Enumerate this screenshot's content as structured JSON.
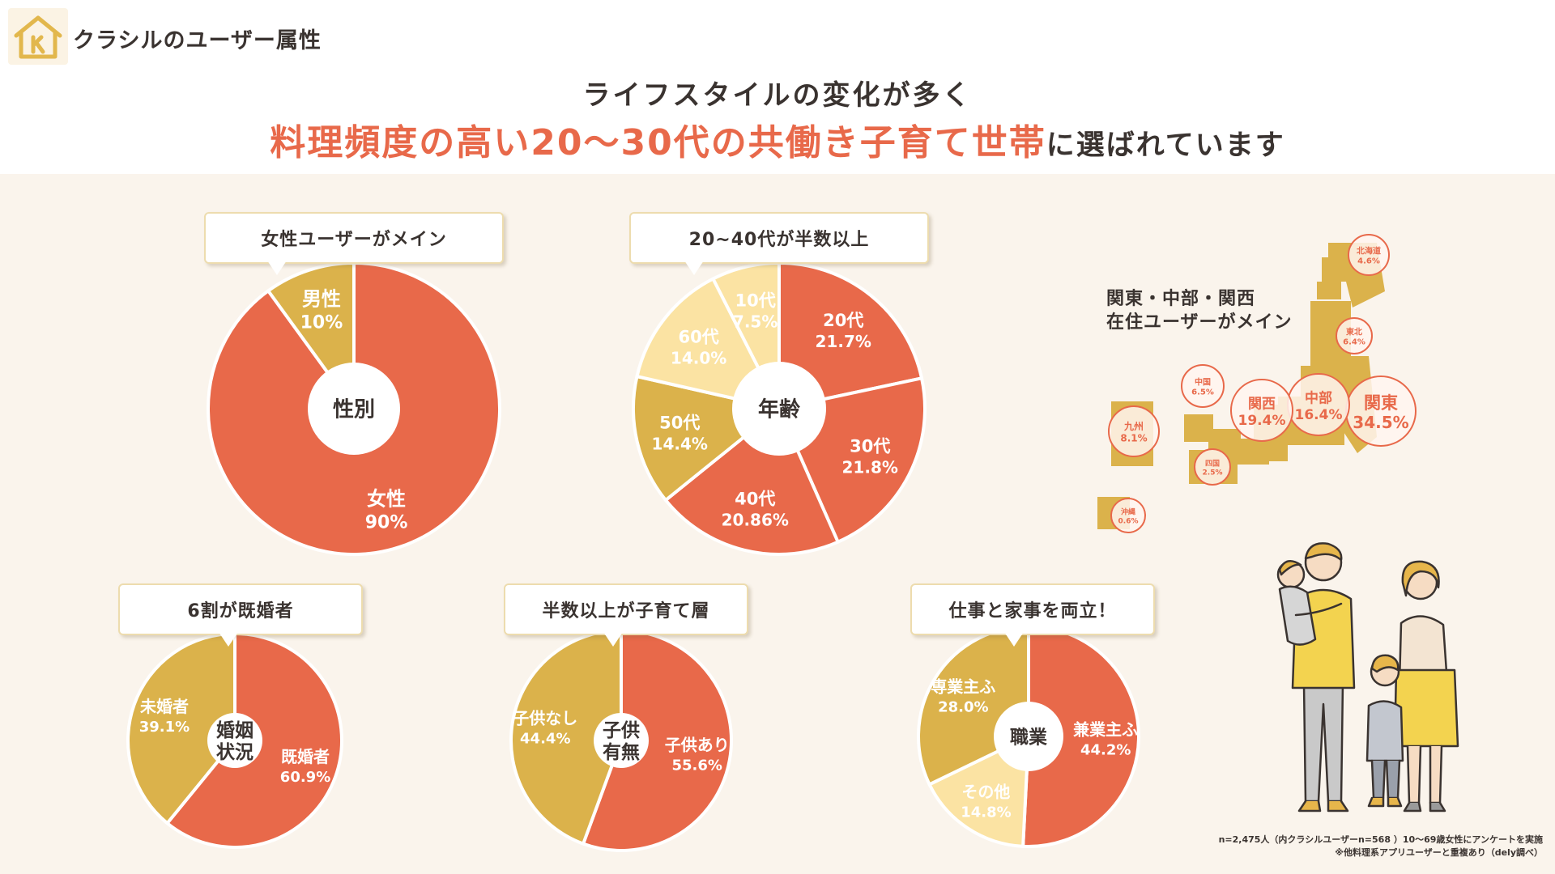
{
  "brand": {
    "title": "クラシルのユーザー属性"
  },
  "headline": {
    "line1": "ライフスタイルの変化が多く",
    "highlight": "料理頻度の高い20〜30代の共働き子育て世帯",
    "rest": "に選ばれています"
  },
  "colors": {
    "red": "#e8694a",
    "gold": "#dbb24b",
    "cream": "#fbe3a3",
    "text": "#3a3330",
    "bg": "#faf4ec"
  },
  "callouts": {
    "gender": "女性ユーザーがメイン",
    "age": "20~40代が半数以上",
    "marital": "6割が既婚者",
    "children": "半数以上が子育て層",
    "job": "仕事と家事を両立！"
  },
  "map": {
    "caption_line1": "関東・中部・関西",
    "caption_line2": "在住ユーザーがメイン",
    "regions": [
      {
        "name": "北海道",
        "value": "4.6%"
      },
      {
        "name": "東北",
        "value": "6.4%"
      },
      {
        "name": "関東",
        "value": "34.5%"
      },
      {
        "name": "中部",
        "value": "16.4%"
      },
      {
        "name": "関西",
        "value": "19.4%"
      },
      {
        "name": "中国",
        "value": "6.5%"
      },
      {
        "name": "四国",
        "value": "2.5%"
      },
      {
        "name": "九州",
        "value": "8.1%"
      },
      {
        "name": "沖縄",
        "value": "0.6%"
      }
    ]
  },
  "footnote": {
    "line1": "n=2,475人（内クラシルユーザーn=568 ）10〜69歳女性にアンケートを実施",
    "line2": "※他料理系アプリユーザーと重複あり（dely調べ）"
  },
  "chart_data": [
    {
      "type": "pie",
      "id": "gender",
      "center_label": [
        "性別"
      ],
      "slices": [
        {
          "label": "女性",
          "value": 90,
          "display": "90%",
          "color": "red"
        },
        {
          "label": "男性",
          "value": 10,
          "display": "10%",
          "color": "gold"
        }
      ]
    },
    {
      "type": "pie",
      "id": "age",
      "center_label": [
        "年齢"
      ],
      "slices": [
        {
          "label": "20代",
          "value": 21.7,
          "display": "21.7%",
          "color": "red"
        },
        {
          "label": "30代",
          "value": 21.8,
          "display": "21.8%",
          "color": "red"
        },
        {
          "label": "40代",
          "value": 20.86,
          "display": "20.86%",
          "color": "red"
        },
        {
          "label": "50代",
          "value": 14.4,
          "display": "14.4%",
          "color": "gold"
        },
        {
          "label": "60代",
          "value": 14.0,
          "display": "14.0%",
          "color": "cream"
        },
        {
          "label": "10代",
          "value": 7.5,
          "display": "7.5%",
          "color": "cream"
        }
      ]
    },
    {
      "type": "pie",
      "id": "marital",
      "center_label": [
        "婚姻",
        "状況"
      ],
      "slices": [
        {
          "label": "既婚者",
          "value": 60.9,
          "display": "60.9%",
          "color": "red"
        },
        {
          "label": "未婚者",
          "value": 39.1,
          "display": "39.1%",
          "color": "gold"
        }
      ]
    },
    {
      "type": "pie",
      "id": "children",
      "center_label": [
        "子供",
        "有無"
      ],
      "slices": [
        {
          "label": "子供あり",
          "value": 55.6,
          "display": "55.6%",
          "color": "red"
        },
        {
          "label": "子供なし",
          "value": 44.4,
          "display": "44.4%",
          "color": "gold"
        }
      ]
    },
    {
      "type": "pie",
      "id": "job",
      "center_label": [
        "職業"
      ],
      "slices": [
        {
          "label": "兼業主ふ",
          "value": 44.2,
          "display": "44.2%",
          "color": "red"
        },
        {
          "label": "その他",
          "value": 14.8,
          "display": "14.8%",
          "color": "cream"
        },
        {
          "label": "専業主ふ",
          "value": 28.0,
          "display": "28.0%",
          "color": "gold"
        }
      ]
    }
  ]
}
